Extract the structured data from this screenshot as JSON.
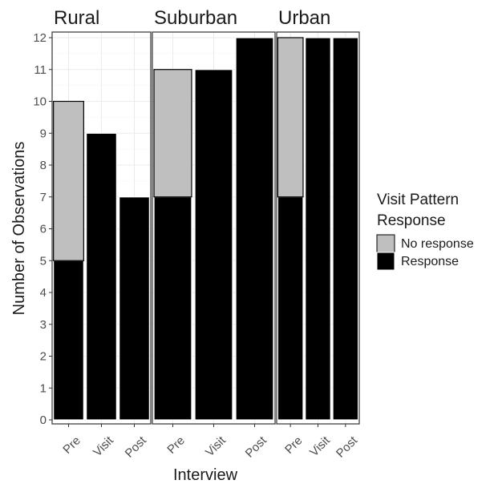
{
  "chart_data": {
    "type": "bar",
    "stacked": true,
    "facets": [
      "Rural",
      "Suburban",
      "Urban"
    ],
    "categories": [
      "Pre",
      "Visit",
      "Post"
    ],
    "xlabel": "Interview",
    "ylabel": "Number of Observations",
    "ylim": [
      0,
      12
    ],
    "yticks": [
      0,
      1,
      2,
      3,
      4,
      5,
      6,
      7,
      8,
      9,
      10,
      11,
      12
    ],
    "grid": true,
    "legend": {
      "title_lines": [
        "Visit Pattern",
        "Response"
      ],
      "position": "right",
      "entries": [
        {
          "name": "No response",
          "color": "#bfbfbf"
        },
        {
          "name": "Response",
          "color": "#000000"
        }
      ]
    },
    "series": [
      {
        "name": "Response",
        "color": "#000000",
        "values": {
          "Rural": [
            5,
            9,
            7
          ],
          "Suburban": [
            7,
            11,
            12
          ],
          "Urban": [
            7,
            12,
            12
          ]
        }
      },
      {
        "name": "No response",
        "color": "#bfbfbf",
        "values": {
          "Rural": [
            5,
            0,
            0
          ],
          "Suburban": [
            4,
            0,
            0
          ],
          "Urban": [
            5,
            0,
            0
          ]
        }
      }
    ]
  }
}
